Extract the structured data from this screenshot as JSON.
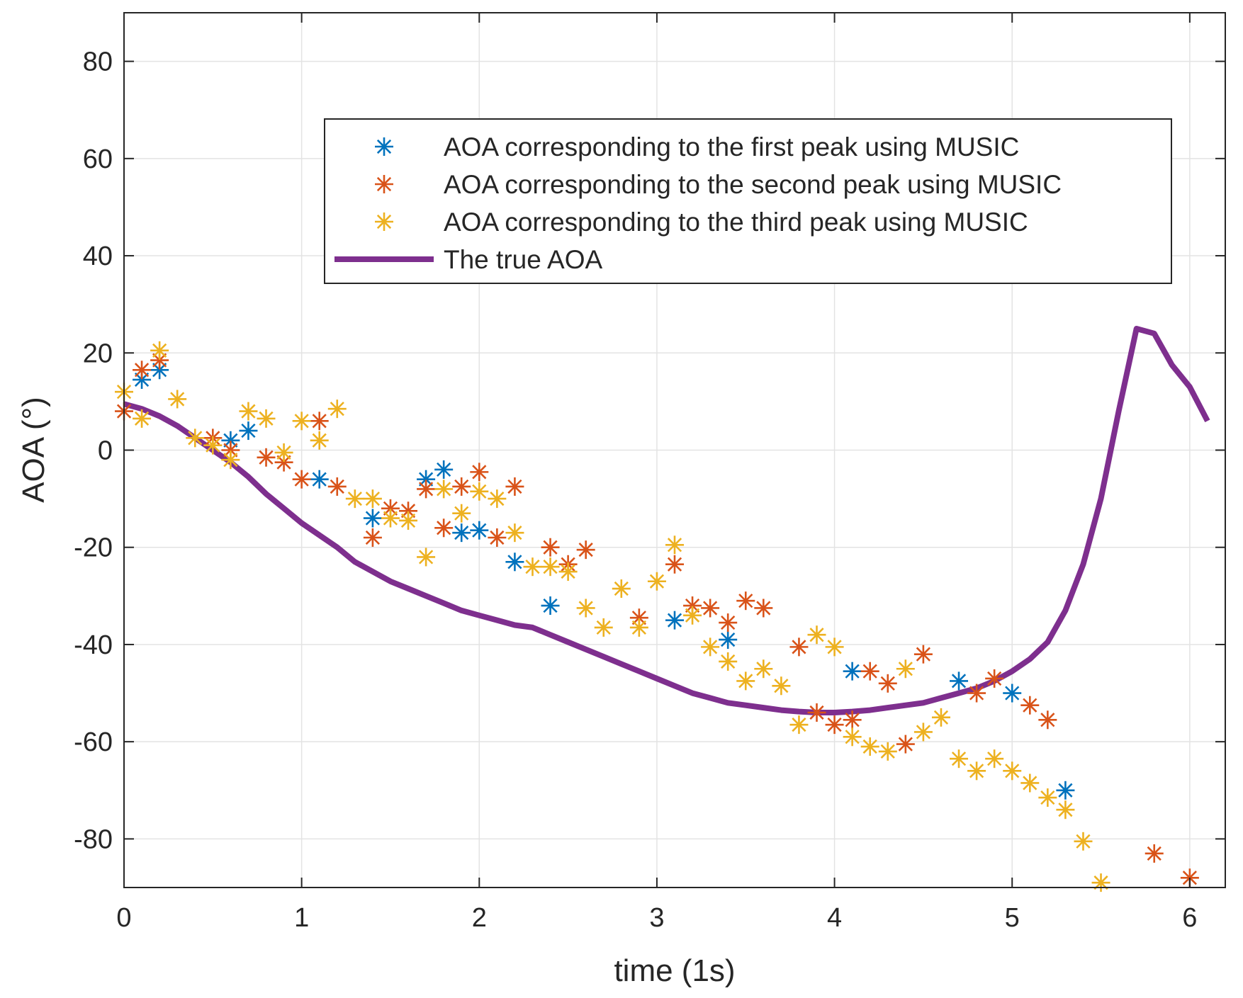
{
  "chart_data": {
    "type": "scatter",
    "xlabel": "time (1s)",
    "ylabel": "AOA (°)",
    "xlim": [
      0,
      6.2
    ],
    "ylim": [
      -90,
      90
    ],
    "x_ticks": [
      0,
      1,
      2,
      3,
      4,
      5,
      6
    ],
    "y_ticks": [
      -80,
      -60,
      -40,
      -20,
      0,
      20,
      40,
      60,
      80
    ],
    "x_tick_labels": [
      "0",
      "1",
      "2",
      "3",
      "4",
      "5",
      "6"
    ],
    "y_tick_labels": [
      "-80",
      "-60",
      "-40",
      "-20",
      "0",
      "20",
      "40",
      "60",
      "80"
    ],
    "grid": true,
    "legend": "top-right",
    "series": [
      {
        "name": "AOA corresponding to the first peak using MUSIC",
        "kind": "marker",
        "marker": "asterisk",
        "color": "#0072BD",
        "points": [
          [
            0.1,
            14.5
          ],
          [
            0.2,
            16.5
          ],
          [
            0.6,
            2
          ],
          [
            0.7,
            4
          ],
          [
            1.1,
            -6
          ],
          [
            1.4,
            -14
          ],
          [
            1.7,
            -6
          ],
          [
            1.8,
            -4
          ],
          [
            1.9,
            -17
          ],
          [
            2.0,
            -16.5
          ],
          [
            2.2,
            -23
          ],
          [
            2.4,
            -32
          ],
          [
            3.1,
            -35
          ],
          [
            3.4,
            -39
          ],
          [
            4.1,
            -45.5
          ],
          [
            4.7,
            -47.5
          ],
          [
            5.0,
            -50
          ],
          [
            5.3,
            -70
          ]
        ]
      },
      {
        "name": "AOA corresponding to the second peak using MUSIC",
        "kind": "marker",
        "marker": "asterisk",
        "color": "#D95319",
        "points": [
          [
            0.0,
            8
          ],
          [
            0.1,
            16.5
          ],
          [
            0.2,
            18.5
          ],
          [
            0.5,
            2.5
          ],
          [
            0.6,
            0
          ],
          [
            0.8,
            -1.5
          ],
          [
            0.9,
            -2.5
          ],
          [
            1.0,
            -6
          ],
          [
            1.1,
            6
          ],
          [
            1.2,
            -7.5
          ],
          [
            1.4,
            -18
          ],
          [
            1.5,
            -12
          ],
          [
            1.6,
            -12.5
          ],
          [
            1.7,
            -8
          ],
          [
            1.8,
            -16
          ],
          [
            1.9,
            -7.5
          ],
          [
            2.0,
            -4.5
          ],
          [
            2.1,
            -18
          ],
          [
            2.2,
            -7.5
          ],
          [
            2.4,
            -20
          ],
          [
            2.5,
            -23.5
          ],
          [
            2.6,
            -20.5
          ],
          [
            2.9,
            -34.5
          ],
          [
            3.1,
            -23.5
          ],
          [
            3.2,
            -32
          ],
          [
            3.3,
            -32.5
          ],
          [
            3.4,
            -35.5
          ],
          [
            3.5,
            -31
          ],
          [
            3.6,
            -32.5
          ],
          [
            3.8,
            -40.5
          ],
          [
            3.9,
            -54
          ],
          [
            4.0,
            -56.5
          ],
          [
            4.1,
            -55.5
          ],
          [
            4.2,
            -45.5
          ],
          [
            4.3,
            -48
          ],
          [
            4.4,
            -60.5
          ],
          [
            4.5,
            -42
          ],
          [
            4.8,
            -50
          ],
          [
            4.9,
            -47
          ],
          [
            5.1,
            -52.5
          ],
          [
            5.2,
            -55.5
          ],
          [
            5.8,
            -83
          ],
          [
            6.0,
            -88
          ]
        ]
      },
      {
        "name": "AOA corresponding to the third peak using MUSIC",
        "kind": "marker",
        "marker": "asterisk",
        "color": "#EDB120",
        "points": [
          [
            0.0,
            12
          ],
          [
            0.1,
            6.5
          ],
          [
            0.2,
            20.5
          ],
          [
            0.3,
            10.5
          ],
          [
            0.4,
            2.5
          ],
          [
            0.5,
            1
          ],
          [
            0.6,
            -2
          ],
          [
            0.7,
            8
          ],
          [
            0.8,
            6.5
          ],
          [
            0.9,
            -0.5
          ],
          [
            1.0,
            6
          ],
          [
            1.1,
            2
          ],
          [
            1.2,
            8.5
          ],
          [
            1.3,
            -10
          ],
          [
            1.4,
            -10
          ],
          [
            1.5,
            -14
          ],
          [
            1.6,
            -14.5
          ],
          [
            1.7,
            -22
          ],
          [
            1.8,
            -8
          ],
          [
            1.9,
            -13
          ],
          [
            2.0,
            -8.5
          ],
          [
            2.1,
            -10
          ],
          [
            2.2,
            -17
          ],
          [
            2.3,
            -24
          ],
          [
            2.4,
            -24
          ],
          [
            2.5,
            -25
          ],
          [
            2.6,
            -32.5
          ],
          [
            2.7,
            -36.5
          ],
          [
            2.8,
            -28.5
          ],
          [
            2.9,
            -36.5
          ],
          [
            3.0,
            -27
          ],
          [
            3.1,
            -19.5
          ],
          [
            3.2,
            -34
          ],
          [
            3.3,
            -40.5
          ],
          [
            3.4,
            -43.5
          ],
          [
            3.5,
            -47.5
          ],
          [
            3.6,
            -45
          ],
          [
            3.7,
            -48.5
          ],
          [
            3.8,
            -56.5
          ],
          [
            3.9,
            -38
          ],
          [
            4.0,
            -40.5
          ],
          [
            4.1,
            -59
          ],
          [
            4.2,
            -61
          ],
          [
            4.3,
            -62
          ],
          [
            4.4,
            -45
          ],
          [
            4.5,
            -58
          ],
          [
            4.6,
            -55
          ],
          [
            4.7,
            -63.5
          ],
          [
            4.8,
            -66
          ],
          [
            4.9,
            -63.5
          ],
          [
            5.0,
            -66
          ],
          [
            5.1,
            -68.5
          ],
          [
            5.2,
            -71.5
          ],
          [
            5.3,
            -74
          ],
          [
            5.4,
            -80.5
          ],
          [
            5.5,
            -89
          ]
        ]
      },
      {
        "name": "The true AOA",
        "kind": "line",
        "color": "#7E2F8E",
        "points": [
          [
            0.0,
            9.5
          ],
          [
            0.1,
            8.5
          ],
          [
            0.2,
            7
          ],
          [
            0.3,
            5
          ],
          [
            0.4,
            2.5
          ],
          [
            0.5,
            0
          ],
          [
            0.6,
            -2.5
          ],
          [
            0.7,
            -5.5
          ],
          [
            0.8,
            -9
          ],
          [
            0.9,
            -12
          ],
          [
            1.0,
            -15
          ],
          [
            1.1,
            -17.5
          ],
          [
            1.2,
            -20
          ],
          [
            1.3,
            -23
          ],
          [
            1.4,
            -25
          ],
          [
            1.5,
            -27
          ],
          [
            1.6,
            -28.5
          ],
          [
            1.7,
            -30
          ],
          [
            1.8,
            -31.5
          ],
          [
            1.9,
            -33
          ],
          [
            2.0,
            -34
          ],
          [
            2.1,
            -35
          ],
          [
            2.2,
            -36
          ],
          [
            2.3,
            -36.5
          ],
          [
            2.4,
            -38
          ],
          [
            2.5,
            -39.5
          ],
          [
            2.6,
            -41
          ],
          [
            2.7,
            -42.5
          ],
          [
            2.8,
            -44
          ],
          [
            2.9,
            -45.5
          ],
          [
            3.0,
            -47
          ],
          [
            3.1,
            -48.5
          ],
          [
            3.2,
            -50
          ],
          [
            3.3,
            -51
          ],
          [
            3.4,
            -52
          ],
          [
            3.5,
            -52.5
          ],
          [
            3.6,
            -53
          ],
          [
            3.7,
            -53.5
          ],
          [
            3.8,
            -53.8
          ],
          [
            3.9,
            -54
          ],
          [
            4.0,
            -54
          ],
          [
            4.1,
            -53.8
          ],
          [
            4.2,
            -53.5
          ],
          [
            4.3,
            -53
          ],
          [
            4.4,
            -52.5
          ],
          [
            4.5,
            -52
          ],
          [
            4.6,
            -51
          ],
          [
            4.7,
            -50
          ],
          [
            4.8,
            -49
          ],
          [
            4.9,
            -47.5
          ],
          [
            5.0,
            -45.5
          ],
          [
            5.1,
            -43
          ],
          [
            5.2,
            -39.5
          ],
          [
            5.3,
            -33
          ],
          [
            5.4,
            -23.5
          ],
          [
            5.5,
            -10
          ],
          [
            5.6,
            8
          ],
          [
            5.7,
            25
          ],
          [
            5.8,
            24
          ],
          [
            5.9,
            17.5
          ],
          [
            6.0,
            13
          ],
          [
            6.1,
            6
          ]
        ]
      }
    ]
  }
}
